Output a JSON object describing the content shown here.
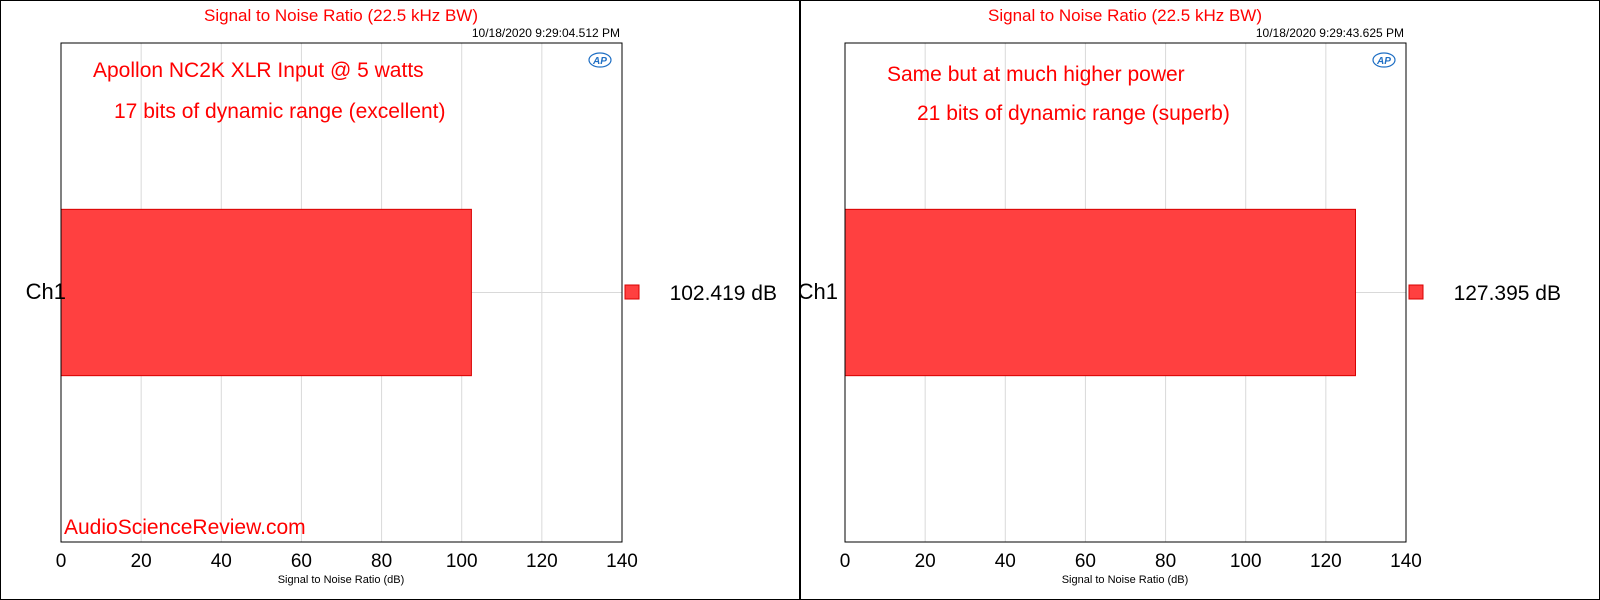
{
  "chart_data": [
    {
      "type": "bar",
      "orientation": "horizontal",
      "title": "Signal to Noise Ratio (22.5 kHz BW)",
      "timestamp": "10/18/2020 9:29:04.512 PM",
      "xlabel": "Signal to Noise Ratio (dB)",
      "ylabel": "",
      "xlim": [
        0,
        140
      ],
      "x_ticks": [
        "0",
        "20",
        "40",
        "60",
        "80",
        "100",
        "120",
        "140"
      ],
      "grid": true,
      "categories": [
        "Ch1"
      ],
      "values": [
        102.419
      ],
      "legend": [
        {
          "label": "102.419  dB",
          "color": "#ff4040"
        }
      ],
      "annotations": [
        "Apollon NC2K XLR Input @ 5 watts",
        "17 bits of dynamic range (excellent)"
      ],
      "watermark": "AudioScienceReview.com",
      "logo": "AP"
    },
    {
      "type": "bar",
      "orientation": "horizontal",
      "title": "Signal to Noise Ratio (22.5 kHz BW)",
      "timestamp": "10/18/2020 9:29:43.625 PM",
      "xlabel": "Signal to Noise Ratio (dB)",
      "ylabel": "",
      "xlim": [
        0,
        140
      ],
      "x_ticks": [
        "0",
        "20",
        "40",
        "60",
        "80",
        "100",
        "120",
        "140"
      ],
      "grid": true,
      "categories": [
        "Ch1"
      ],
      "values": [
        127.395
      ],
      "legend": [
        {
          "label": "127.395  dB",
          "color": "#ff4040"
        }
      ],
      "annotations": [
        "Same but at much higher power",
        "21 bits of dynamic range (superb)"
      ],
      "watermark": "",
      "logo": "AP"
    }
  ],
  "colors": {
    "bar": "#ff4040",
    "bar_stroke": "#d80000",
    "title": "#ff0000",
    "annotation": "#ff0000",
    "watermark": "#ff0000",
    "logo": "#1f6fc4",
    "grid": "#d9d9d9"
  }
}
